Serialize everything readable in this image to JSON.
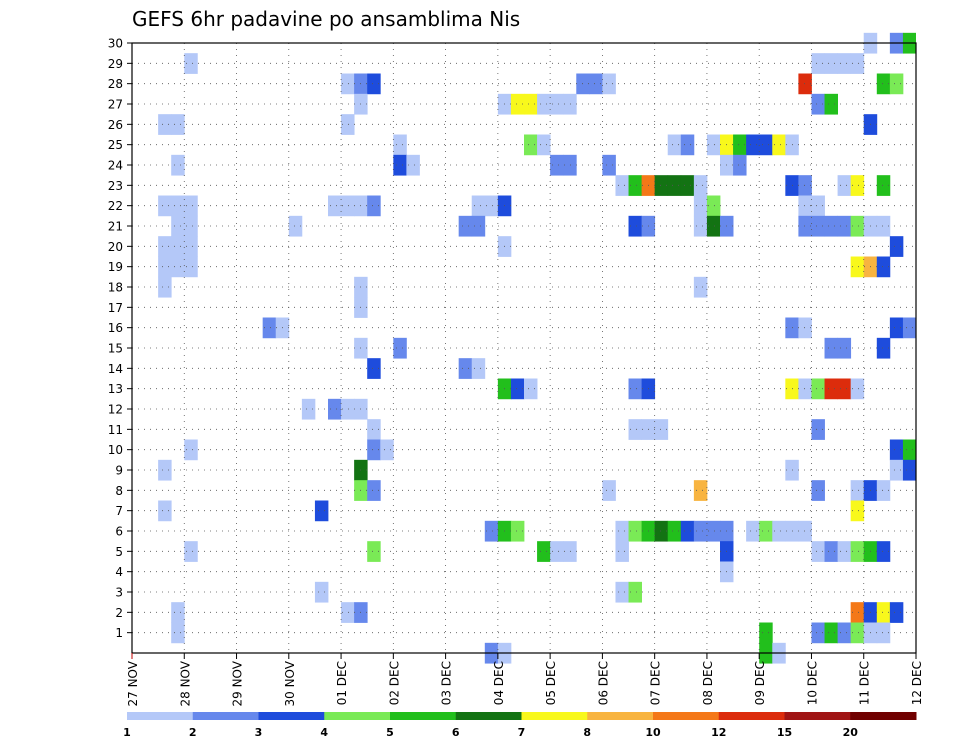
{
  "chart_data": {
    "type": "heatmap",
    "title": "GEFS 6hr padavine po ansamblima Nis",
    "x_tick_labels": [
      "27 NOV",
      "28 NOV",
      "29 NOV",
      "30 NOV",
      "01 DEC",
      "02 DEC",
      "03 DEC",
      "04 DEC",
      "05 DEC",
      "06 DEC",
      "07 DEC",
      "08 DEC",
      "09 DEC",
      "10 DEC",
      "11 DEC",
      "12 DEC"
    ],
    "y_tick_labels": [
      "1",
      "2",
      "3",
      "4",
      "5",
      "6",
      "7",
      "8",
      "9",
      "10",
      "11",
      "12",
      "13",
      "14",
      "15",
      "16",
      "17",
      "18",
      "19",
      "20",
      "21",
      "22",
      "23",
      "24",
      "25",
      "26",
      "27",
      "28",
      "29",
      "30"
    ],
    "grid": true,
    "legend": {
      "position": "bottom",
      "labels": [
        "1",
        "2",
        "3",
        "4",
        "5",
        "6",
        "7",
        "8",
        "10",
        "12",
        "15",
        "20"
      ],
      "colors": [
        "#b4c8f8",
        "#6688ec",
        "#1e4cdc",
        "#7aea56",
        "#22bf1c",
        "#137313",
        "#f8f81c",
        "#f8b440",
        "#f47818",
        "#dc2c0c",
        "#a01414",
        "#700000"
      ]
    },
    "colors": [
      "#b4c8f8",
      "#6688ec",
      "#1e4cdc",
      "#7aea56",
      "#22bf1c",
      "#137313",
      "#f8f81c",
      "#f8b440",
      "#f47818",
      "#dc2c0c",
      "#a01414",
      "#700000"
    ],
    "cells_note": "each cell = [day_index_from_27_NOV (0.25 = 6h step), member_row, color_class 0..11]",
    "cells": [
      [
        14.0,
        30,
        0
      ],
      [
        14.5,
        30,
        1
      ],
      [
        14.75,
        30,
        4
      ],
      [
        1.0,
        29,
        0
      ],
      [
        13.0,
        29,
        0
      ],
      [
        13.25,
        29,
        0
      ],
      [
        13.5,
        29,
        0
      ],
      [
        13.75,
        29,
        0
      ],
      [
        4.0,
        28,
        0
      ],
      [
        4.25,
        28,
        1
      ],
      [
        4.5,
        28,
        2
      ],
      [
        8.5,
        28,
        1
      ],
      [
        8.75,
        28,
        1
      ],
      [
        9.0,
        28,
        0
      ],
      [
        12.75,
        28,
        9
      ],
      [
        14.25,
        28,
        4
      ],
      [
        14.5,
        28,
        3
      ],
      [
        4.25,
        27,
        0
      ],
      [
        7.0,
        27,
        0
      ],
      [
        7.25,
        27,
        6
      ],
      [
        7.5,
        27,
        6
      ],
      [
        7.75,
        27,
        0
      ],
      [
        8.0,
        27,
        0
      ],
      [
        8.25,
        27,
        0
      ],
      [
        13.0,
        27,
        1
      ],
      [
        13.25,
        27,
        4
      ],
      [
        0.5,
        26,
        0
      ],
      [
        0.75,
        26,
        0
      ],
      [
        4.0,
        26,
        0
      ],
      [
        14.0,
        26,
        2
      ],
      [
        5.0,
        25,
        0
      ],
      [
        7.5,
        25,
        3
      ],
      [
        7.75,
        25,
        0
      ],
      [
        10.25,
        25,
        0
      ],
      [
        10.5,
        25,
        1
      ],
      [
        11.0,
        25,
        0
      ],
      [
        11.25,
        25,
        6
      ],
      [
        11.5,
        25,
        4
      ],
      [
        11.75,
        25,
        2
      ],
      [
        12.0,
        25,
        2
      ],
      [
        12.25,
        25,
        6
      ],
      [
        12.5,
        25,
        0
      ],
      [
        0.75,
        24,
        0
      ],
      [
        5.0,
        24,
        2
      ],
      [
        5.25,
        24,
        0
      ],
      [
        8.0,
        24,
        1
      ],
      [
        8.25,
        24,
        1
      ],
      [
        9.0,
        24,
        1
      ],
      [
        11.25,
        24,
        0
      ],
      [
        11.5,
        24,
        1
      ],
      [
        9.25,
        23,
        0
      ],
      [
        9.5,
        23,
        4
      ],
      [
        9.75,
        23,
        8
      ],
      [
        10.0,
        23,
        5
      ],
      [
        10.25,
        23,
        5
      ],
      [
        10.5,
        23,
        5
      ],
      [
        10.75,
        23,
        0
      ],
      [
        12.5,
        23,
        2
      ],
      [
        12.75,
        23,
        1
      ],
      [
        13.5,
        23,
        0
      ],
      [
        13.75,
        23,
        6
      ],
      [
        14.25,
        23,
        4
      ],
      [
        15.0,
        23,
        2
      ],
      [
        0.5,
        22,
        0
      ],
      [
        0.75,
        22,
        0
      ],
      [
        1.0,
        22,
        0
      ],
      [
        3.75,
        22,
        0
      ],
      [
        4.0,
        22,
        0
      ],
      [
        4.25,
        22,
        0
      ],
      [
        4.5,
        22,
        1
      ],
      [
        6.5,
        22,
        0
      ],
      [
        6.75,
        22,
        0
      ],
      [
        7.0,
        22,
        2
      ],
      [
        10.75,
        22,
        0
      ],
      [
        11.0,
        22,
        3
      ],
      [
        12.75,
        22,
        0
      ],
      [
        13.0,
        22,
        0
      ],
      [
        0.75,
        21,
        0
      ],
      [
        1.0,
        21,
        0
      ],
      [
        3.0,
        21,
        0
      ],
      [
        6.25,
        21,
        1
      ],
      [
        6.5,
        21,
        1
      ],
      [
        9.5,
        21,
        2
      ],
      [
        9.75,
        21,
        1
      ],
      [
        10.75,
        21,
        0
      ],
      [
        11.0,
        21,
        5
      ],
      [
        11.25,
        21,
        1
      ],
      [
        12.75,
        21,
        1
      ],
      [
        13.0,
        21,
        1
      ],
      [
        13.25,
        21,
        1
      ],
      [
        13.5,
        21,
        1
      ],
      [
        13.75,
        21,
        3
      ],
      [
        14.0,
        21,
        0
      ],
      [
        14.25,
        21,
        0
      ],
      [
        15.0,
        21,
        8
      ],
      [
        0.5,
        20,
        0
      ],
      [
        0.75,
        20,
        0
      ],
      [
        1.0,
        20,
        0
      ],
      [
        7.0,
        20,
        0
      ],
      [
        14.5,
        20,
        2
      ],
      [
        0.5,
        19,
        0
      ],
      [
        0.75,
        19,
        0
      ],
      [
        1.0,
        19,
        0
      ],
      [
        13.75,
        19,
        6
      ],
      [
        14.0,
        19,
        7
      ],
      [
        14.25,
        19,
        2
      ],
      [
        0.5,
        18,
        0
      ],
      [
        4.25,
        18,
        0
      ],
      [
        10.75,
        18,
        0
      ],
      [
        4.25,
        17,
        0
      ],
      [
        2.5,
        16,
        1
      ],
      [
        2.75,
        16,
        0
      ],
      [
        12.5,
        16,
        1
      ],
      [
        12.75,
        16,
        0
      ],
      [
        14.5,
        16,
        2
      ],
      [
        14.75,
        16,
        1
      ],
      [
        4.25,
        15,
        0
      ],
      [
        5.0,
        15,
        1
      ],
      [
        13.25,
        15,
        1
      ],
      [
        13.5,
        15,
        1
      ],
      [
        14.25,
        15,
        2
      ],
      [
        4.5,
        14,
        2
      ],
      [
        6.25,
        14,
        1
      ],
      [
        6.5,
        14,
        0
      ],
      [
        7.0,
        13,
        4
      ],
      [
        7.25,
        13,
        2
      ],
      [
        7.5,
        13,
        0
      ],
      [
        9.5,
        13,
        1
      ],
      [
        9.75,
        13,
        2
      ],
      [
        12.5,
        13,
        6
      ],
      [
        12.75,
        13,
        0
      ],
      [
        13.0,
        13,
        3
      ],
      [
        13.25,
        13,
        9
      ],
      [
        13.5,
        13,
        9
      ],
      [
        13.75,
        13,
        0
      ],
      [
        3.25,
        12,
        0
      ],
      [
        3.75,
        12,
        1
      ],
      [
        4.0,
        12,
        0
      ],
      [
        4.25,
        12,
        0
      ],
      [
        4.5,
        11,
        0
      ],
      [
        9.5,
        11,
        0
      ],
      [
        9.75,
        11,
        0
      ],
      [
        10.0,
        11,
        0
      ],
      [
        13.0,
        11,
        1
      ],
      [
        1.0,
        10,
        0
      ],
      [
        4.5,
        10,
        1
      ],
      [
        4.75,
        10,
        0
      ],
      [
        14.5,
        10,
        2
      ],
      [
        14.75,
        10,
        4
      ],
      [
        0.5,
        9,
        0
      ],
      [
        4.25,
        9,
        5
      ],
      [
        12.5,
        9,
        0
      ],
      [
        14.5,
        9,
        0
      ],
      [
        14.75,
        9,
        2
      ],
      [
        4.25,
        8,
        3
      ],
      [
        4.5,
        8,
        1
      ],
      [
        9.0,
        8,
        0
      ],
      [
        10.75,
        8,
        7
      ],
      [
        13.0,
        8,
        1
      ],
      [
        13.75,
        8,
        0
      ],
      [
        14.0,
        8,
        2
      ],
      [
        14.25,
        8,
        0
      ],
      [
        0.5,
        7,
        0
      ],
      [
        3.5,
        7,
        2
      ],
      [
        13.75,
        7,
        6
      ],
      [
        6.75,
        6,
        1
      ],
      [
        7.0,
        6,
        4
      ],
      [
        7.25,
        6,
        3
      ],
      [
        9.25,
        6,
        0
      ],
      [
        9.5,
        6,
        3
      ],
      [
        9.75,
        6,
        4
      ],
      [
        10.0,
        6,
        5
      ],
      [
        10.25,
        6,
        4
      ],
      [
        10.5,
        6,
        2
      ],
      [
        10.75,
        6,
        1
      ],
      [
        11.0,
        6,
        1
      ],
      [
        11.25,
        6,
        1
      ],
      [
        11.75,
        6,
        0
      ],
      [
        12.0,
        6,
        3
      ],
      [
        12.25,
        6,
        0
      ],
      [
        12.5,
        6,
        0
      ],
      [
        12.75,
        6,
        0
      ],
      [
        1.0,
        5,
        0
      ],
      [
        4.5,
        5,
        3
      ],
      [
        7.75,
        5,
        4
      ],
      [
        8.0,
        5,
        0
      ],
      [
        8.25,
        5,
        0
      ],
      [
        9.25,
        5,
        0
      ],
      [
        11.25,
        5,
        2
      ],
      [
        13.0,
        5,
        0
      ],
      [
        13.25,
        5,
        1
      ],
      [
        13.5,
        5,
        0
      ],
      [
        13.75,
        5,
        3
      ],
      [
        14.0,
        5,
        4
      ],
      [
        14.25,
        5,
        2
      ],
      [
        11.25,
        4,
        0
      ],
      [
        3.5,
        3,
        0
      ],
      [
        9.25,
        3,
        0
      ],
      [
        9.5,
        3,
        3
      ],
      [
        0.75,
        2,
        0
      ],
      [
        4.0,
        2,
        0
      ],
      [
        4.25,
        2,
        1
      ],
      [
        13.75,
        2,
        8
      ],
      [
        14.0,
        2,
        2
      ],
      [
        14.25,
        2,
        6
      ],
      [
        14.5,
        2,
        2
      ],
      [
        0.75,
        1,
        0
      ],
      [
        12.0,
        1,
        4
      ],
      [
        13.0,
        1,
        1
      ],
      [
        13.25,
        1,
        4
      ],
      [
        13.5,
        1,
        1
      ],
      [
        13.75,
        1,
        3
      ],
      [
        14.0,
        1,
        0
      ],
      [
        14.25,
        1,
        0
      ],
      [
        6.75,
        0,
        1
      ],
      [
        7.0,
        0,
        0
      ],
      [
        12.0,
        0,
        4
      ],
      [
        12.25,
        0,
        0
      ]
    ]
  }
}
